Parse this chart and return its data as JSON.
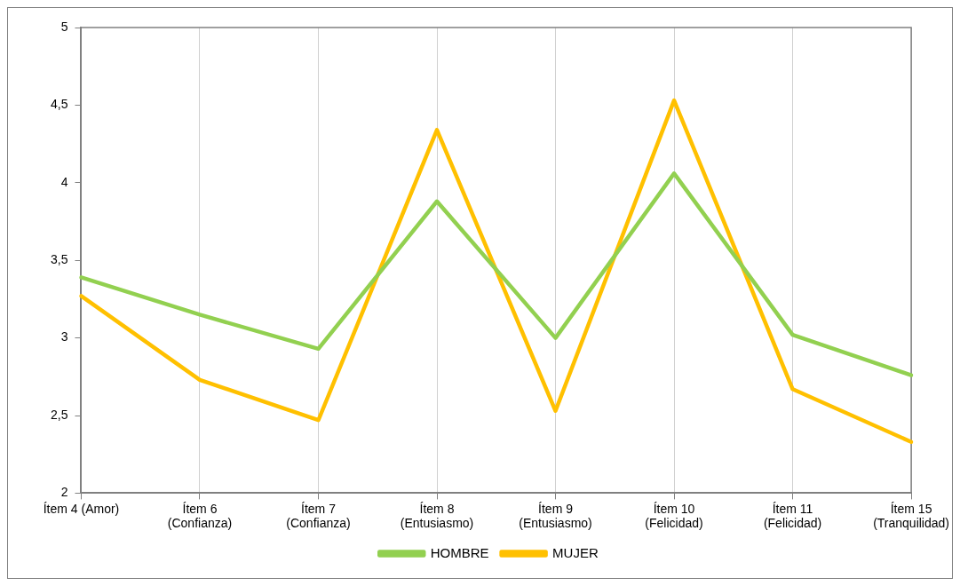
{
  "chart_data": {
    "type": "line",
    "categories": [
      "Ítem 4 (Amor)",
      "Ítem 6 (Confianza)",
      "Ítem 7 (Confianza)",
      "Ítem 8 (Entusiasmo)",
      "Ítem 9 (Entusiasmo)",
      "Ítem 10 (Felicidad)",
      "Ítem 11 (Felicidad)",
      "Ítem 15 (Tranquilidad)"
    ],
    "series": [
      {
        "name": "HOMBRE",
        "color": "#92d050",
        "values": [
          3.39,
          3.15,
          2.93,
          3.88,
          3.0,
          4.06,
          3.02,
          2.76
        ]
      },
      {
        "name": "MUJER",
        "color": "#ffc000",
        "values": [
          3.27,
          2.73,
          2.47,
          4.34,
          2.53,
          4.53,
          2.67,
          2.33
        ]
      }
    ],
    "ylim": [
      2,
      5
    ],
    "yticks": [
      2,
      {
        "value": 2.5,
        "label": "2,5"
      },
      3,
      {
        "value": 3.5,
        "label": "3,5"
      },
      4,
      {
        "value": 4.5,
        "label": "4,5"
      },
      5
    ],
    "grid": "x",
    "legend": "bottom",
    "marker": "none",
    "line_style": "solid"
  }
}
